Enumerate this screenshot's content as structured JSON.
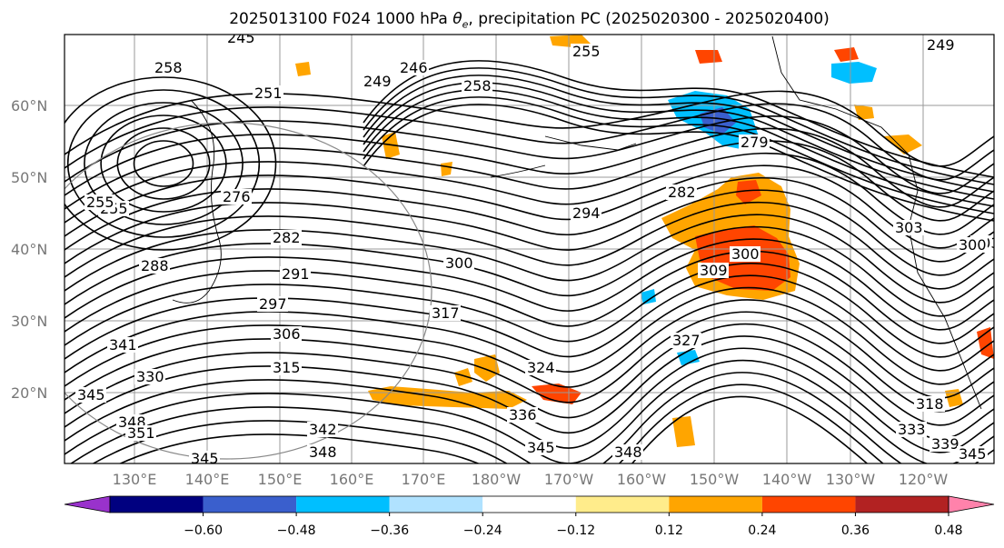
{
  "title": {
    "run": "2025013100",
    "forecast": "F024",
    "level": "1000 hPa",
    "variable_symbol": "θ",
    "variable_sub": "e",
    "rest": ", precipitation PC (2025020300 - 2025020400)"
  },
  "lat_labels": [
    "60°N",
    "50°N",
    "40°N",
    "30°N",
    "20°N"
  ],
  "lon_labels": [
    "130°E",
    "140°E",
    "150°E",
    "160°E",
    "170°E",
    "180°W",
    "170°W",
    "160°W",
    "150°W",
    "140°W",
    "130°W",
    "120°W"
  ],
  "contour_labels": [
    "245",
    "258",
    "251",
    "249",
    "246",
    "255",
    "258",
    "255",
    "249",
    "276",
    "282",
    "291",
    "297",
    "306",
    "315",
    "330",
    "341",
    "345",
    "348",
    "351",
    "345",
    "348",
    "342",
    "336",
    "345",
    "348",
    "339",
    "345",
    "333",
    "318",
    "303",
    "303",
    "300",
    "309",
    "300",
    "294",
    "282",
    "279",
    "327",
    "324",
    "317",
    "300",
    "288",
    "255"
  ],
  "colorbar": {
    "colors": [
      "#9932cc",
      "#000080",
      "#3a5fcd",
      "#00bfff",
      "#b0e2ff",
      "#ffffff",
      "#ffec8b",
      "#ffa500",
      "#ff4500",
      "#b22222",
      "#ff82ab"
    ],
    "tick_labels": [
      "−0.60",
      "−0.48",
      "−0.36",
      "−0.24",
      "−0.12",
      "0.12",
      "0.24",
      "0.36",
      "0.48",
      "0.60"
    ]
  },
  "precip_colors": {
    "weak_pos": "#ffa500",
    "mid_pos": "#ff4500",
    "weak_neg": "#00bfff",
    "mid_neg": "#3a5fcd"
  }
}
